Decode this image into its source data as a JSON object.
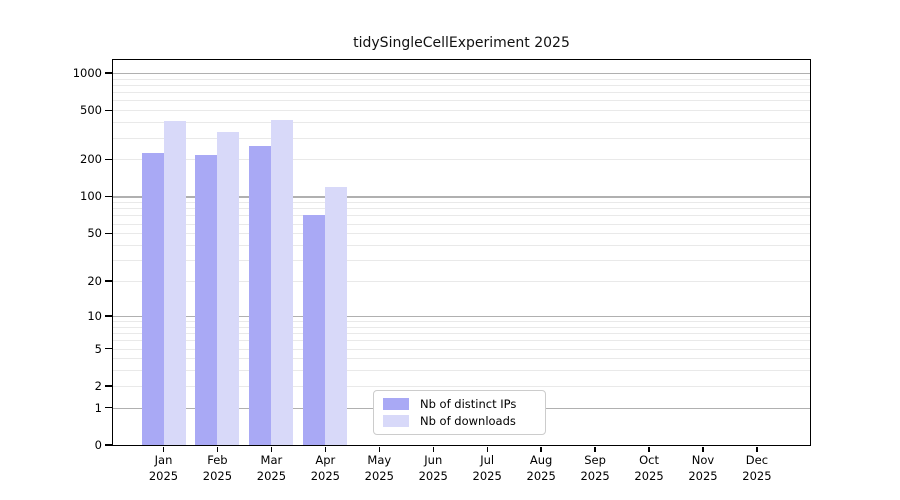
{
  "chart_data": {
    "type": "bar",
    "title": "tidySingleCellExperiment 2025",
    "categories": [
      "Jan 2025",
      "Feb 2025",
      "Mar 2025",
      "Apr 2025",
      "May 2025",
      "Jun 2025",
      "Jul 2025",
      "Aug 2025",
      "Sep 2025",
      "Oct 2025",
      "Nov 2025",
      "Dec 2025"
    ],
    "series": [
      {
        "name": "Nb of distinct IPs",
        "color": "#a9a9f5",
        "values": [
          225,
          218,
          259,
          70,
          null,
          null,
          null,
          null,
          null,
          null,
          null,
          null
        ]
      },
      {
        "name": "Nb of downloads",
        "color": "#d8d9f9",
        "values": [
          406,
          332,
          413,
          119,
          null,
          null,
          null,
          null,
          null,
          null,
          null,
          null
        ]
      }
    ],
    "yscale": "log10(1+x)",
    "ylim": [
      0,
      1260
    ],
    "y_ticks": [
      0,
      1,
      2,
      5,
      10,
      20,
      50,
      100,
      200,
      500,
      1000
    ],
    "y_major_gridlines": [
      1,
      10,
      100,
      1000
    ],
    "y_minor_gridlines": [
      2,
      3,
      4,
      5,
      6,
      7,
      8,
      9,
      20,
      30,
      40,
      50,
      60,
      70,
      80,
      90,
      200,
      300,
      400,
      500,
      600,
      700,
      800,
      900
    ],
    "grid": true,
    "legend_position": "lower center",
    "colors": {
      "major_grid": "#b0b0b0",
      "minor_grid": "#e9e9e9",
      "spine": "#000000",
      "background": "#ffffff"
    }
  }
}
